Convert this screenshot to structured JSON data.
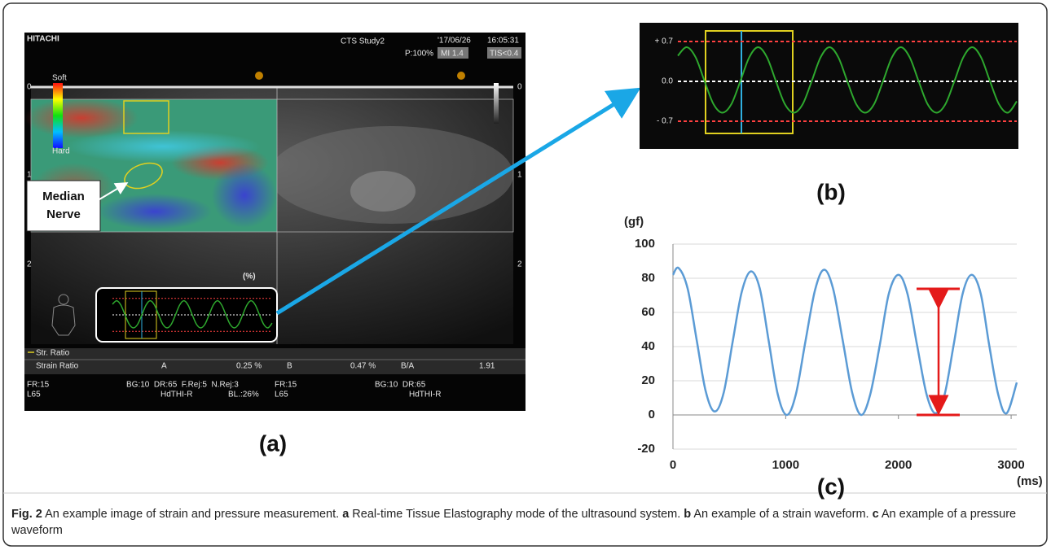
{
  "panel_labels": [
    "(a)",
    "(b)",
    "(c)"
  ],
  "ultrasound": {
    "brand": "HITACHI",
    "study": "CTS Study2",
    "date": "'17/06/26",
    "time": "16:05:31",
    "power": "P:100%",
    "mi": "MI 1.4",
    "tis": "TIS<0.4",
    "soft": "Soft",
    "hard": "Hard",
    "depth": [
      "0",
      "1",
      "2"
    ],
    "annotation": [
      "Median",
      "Nerve"
    ],
    "unit": "(%)",
    "ratio_title": "Str. Ratio",
    "ratio_row": [
      "Strain Ratio",
      "A",
      "0.25 %",
      "B",
      "0.47 %",
      "B/A",
      "1.91"
    ],
    "left_info": [
      "FR:15",
      "L65"
    ],
    "left_params": [
      "BG:10  DR:65  F.Rej:5  N.Rej:3",
      "HdTHI-R",
      "BL.:26%"
    ],
    "right_info": [
      "FR:15",
      "L65"
    ],
    "right_params": [
      "BG:10  DR:65",
      "HdTHI-R"
    ]
  },
  "chart_data": [
    {
      "type": "line",
      "color": "#2ea82e",
      "ylim": [
        -1,
        1
      ],
      "grid": true,
      "yticks": [
        {
          "value": 0.7,
          "label": "+ 0.7"
        },
        {
          "value": 0,
          "label": "0.0"
        },
        {
          "value": -0.7,
          "label": "- 0.7"
        }
      ],
      "values": [
        0.45,
        0.6,
        0.42,
        0.0,
        -0.4,
        -0.55,
        -0.4,
        0.0,
        0.42,
        0.6,
        0.42,
        0.0,
        -0.4,
        -0.55,
        -0.4,
        0.0,
        0.42,
        0.6,
        0.42,
        0.0,
        -0.4,
        -0.55,
        -0.4,
        0.0,
        0.42,
        0.6,
        0.42,
        0.0,
        -0.4,
        -0.55,
        -0.4,
        0.0,
        0.42,
        0.6,
        0.42,
        0.0,
        -0.4,
        -0.55,
        -0.35
      ]
    },
    {
      "type": "line",
      "ylabel": "(gf)",
      "xlabel": "(ms)",
      "grid": true,
      "xlim": [
        0,
        3050
      ],
      "xticks": [
        0,
        1000,
        2000,
        3000
      ],
      "ylim": [
        -20,
        100
      ],
      "yticks": [
        -20,
        0,
        20,
        40,
        60,
        80,
        100
      ],
      "x": [
        0,
        50,
        130,
        210,
        290,
        370,
        450,
        530,
        610,
        690,
        770,
        850,
        930,
        1010,
        1090,
        1175,
        1260,
        1340,
        1420,
        1505,
        1590,
        1670,
        1750,
        1835,
        1915,
        2000,
        2080,
        2165,
        2250,
        2330,
        2410,
        2490,
        2570,
        2650,
        2730,
        2805,
        2885,
        2960,
        3050
      ],
      "series": [
        {
          "color": "#5b9bd5",
          "values": [
            82,
            86,
            74,
            44,
            14,
            2,
            13,
            43,
            72,
            84,
            74,
            43,
            12,
            0,
            12,
            43,
            73,
            85,
            74,
            44,
            13,
            0,
            12,
            41,
            71,
            82,
            71,
            41,
            12,
            1,
            12,
            41,
            71,
            82,
            71,
            41,
            12,
            1,
            19
          ]
        }
      ]
    }
  ],
  "caption": {
    "label": "Fig. 2",
    "text": "An example image of strain and pressure measurement.",
    "a": "a",
    "a_text": "Real-time Tissue Elastography mode of the ultrasound system.",
    "b": "b",
    "b_text": "An example of a strain waveform.",
    "c": "c",
    "c_text": "An example of a pressure waveform"
  }
}
